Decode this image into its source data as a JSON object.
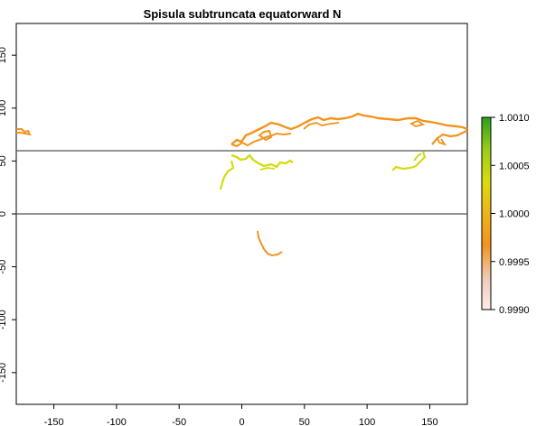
{
  "map": {
    "title": "Spisula subtruncata equatorward N",
    "x_ticks": [
      "-150",
      "-100",
      "-50",
      "0",
      "50",
      "100",
      "150"
    ],
    "y_ticks": [
      "150",
      "100",
      "50",
      "0",
      "-50",
      "-100",
      "-150"
    ],
    "x_range": [
      -180,
      180
    ],
    "y_range": [
      -180,
      180
    ],
    "reference_lines_y": [
      50,
      0
    ],
    "colors": {
      "frame": "#000000",
      "reference_line": "#555555",
      "orange": "#F2941E",
      "yellow": "#D4DC10",
      "yellow_green": "#BCD617",
      "green": "#2E9E1E"
    }
  },
  "legend": {
    "labels": [
      "1.0010",
      "1.0005",
      "1.0000",
      "0.9995",
      "0.9990"
    ],
    "range": [
      0.999,
      1.001
    ],
    "stops": [
      "#2E9E1E",
      "#9ACC1A",
      "#D8DC10",
      "#EDB41A",
      "#F2941E",
      "#F0C9B6",
      "#FBEDEB"
    ]
  }
}
